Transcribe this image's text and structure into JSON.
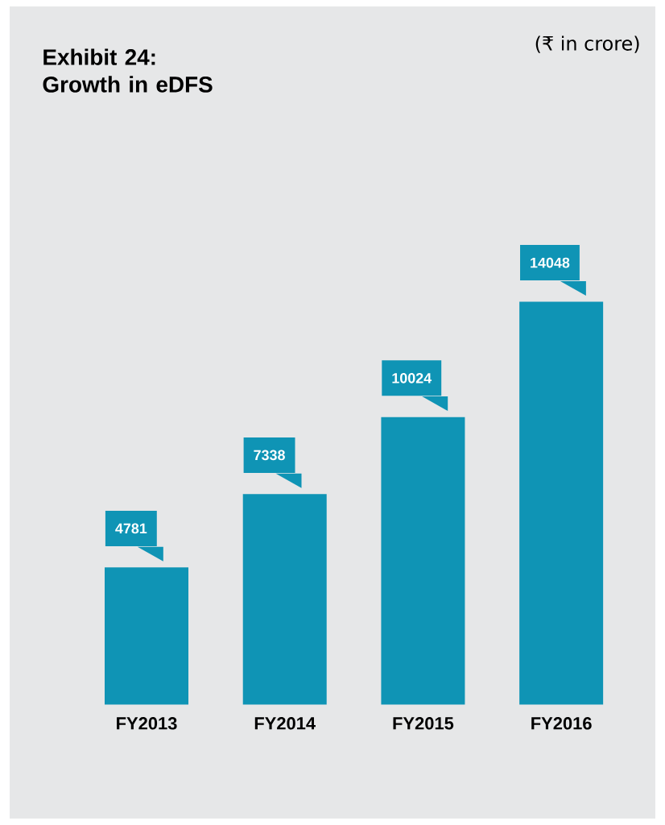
{
  "chart_data": {
    "type": "bar",
    "title": "Exhibit 24: Growth in eDFS",
    "subtitle": "(₹ in crore)",
    "categories": [
      "FY2013",
      "FY2014",
      "FY2015",
      "FY2016"
    ],
    "values": [
      4781,
      7338,
      10024,
      14048
    ],
    "color": "#0f94b5",
    "data_labels": true
  }
}
